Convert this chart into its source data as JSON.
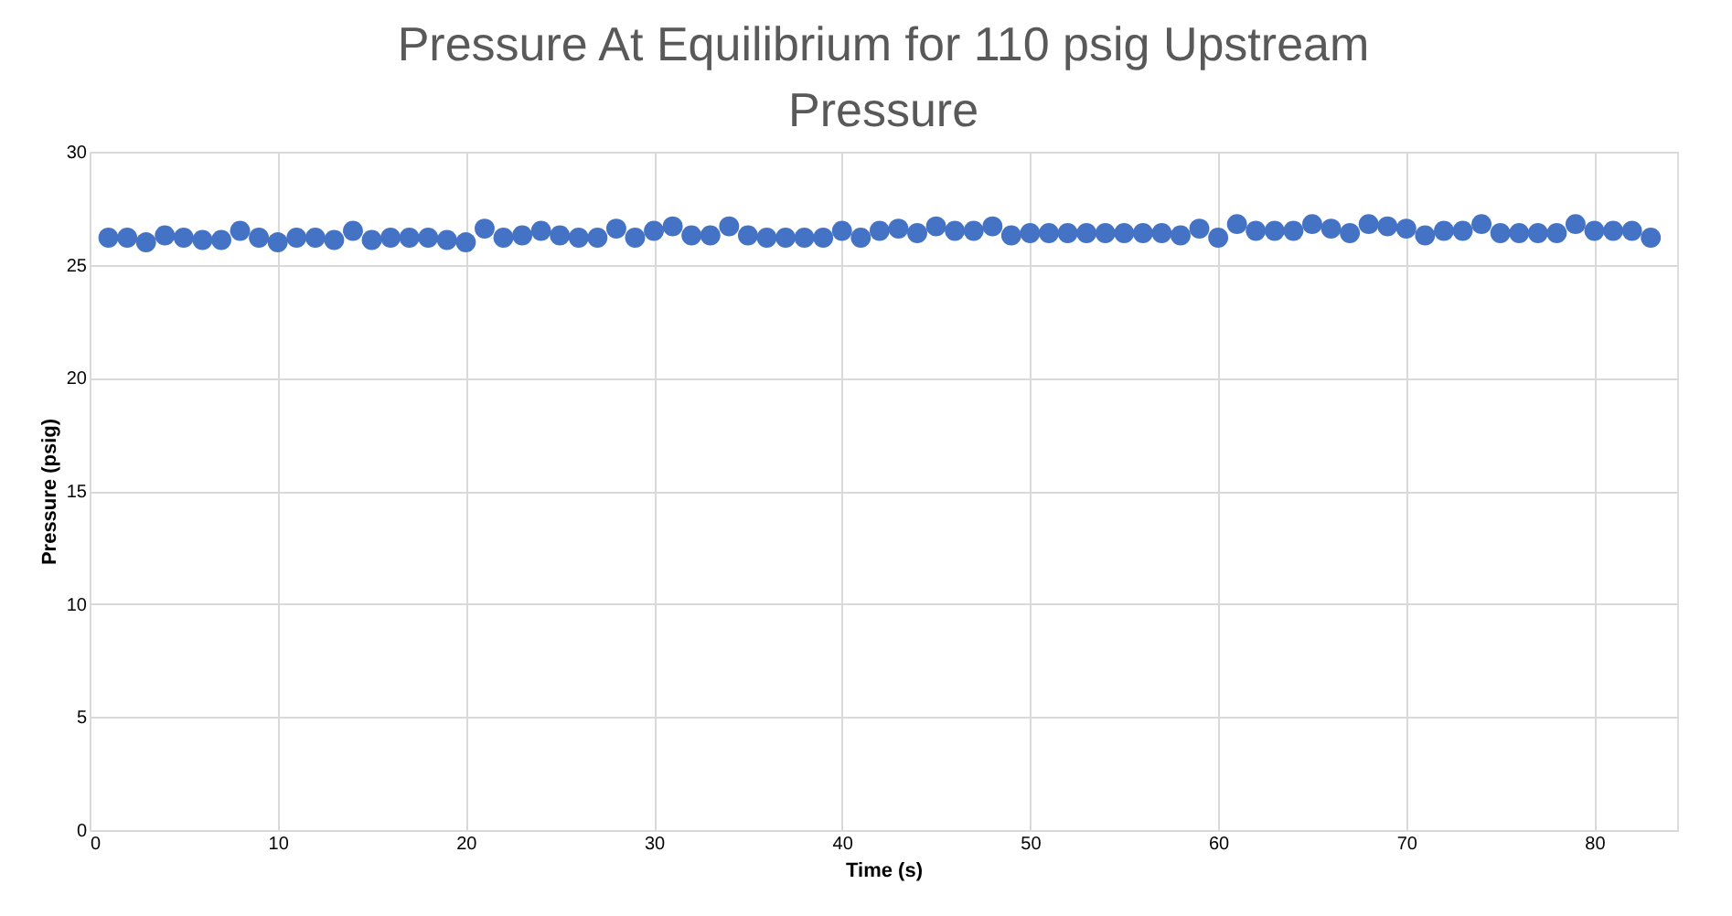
{
  "chart_data": {
    "type": "scatter",
    "title": "Pressure At Equilibrium for 110 psig Upstream Pressure",
    "xlabel": "Time (s)",
    "ylabel": "Pressure (psig)",
    "series": [
      {
        "color": "#4472c4",
        "x": [
          1,
          2,
          3,
          4,
          5,
          6,
          7,
          8,
          9,
          10,
          11,
          12,
          13,
          14,
          15,
          16,
          17,
          18,
          19,
          20,
          21,
          22,
          23,
          24,
          25,
          26,
          27,
          28,
          29,
          30,
          31,
          32,
          33,
          34,
          35,
          36,
          37,
          38,
          39,
          40,
          41,
          42,
          43,
          44,
          45,
          46,
          47,
          48,
          49,
          50,
          51,
          52,
          53,
          54,
          55,
          56,
          57,
          58,
          59,
          60,
          61,
          62,
          63,
          64,
          65,
          66,
          67,
          68,
          69,
          70,
          71,
          72,
          73,
          74,
          75,
          76,
          77,
          78,
          79,
          80,
          81,
          82,
          83
        ],
        "values": [
          26.2,
          26.2,
          26.0,
          26.3,
          26.2,
          26.1,
          26.1,
          26.5,
          26.2,
          26.0,
          26.2,
          26.2,
          26.1,
          26.5,
          26.1,
          26.2,
          26.2,
          26.2,
          26.1,
          26.0,
          26.6,
          26.2,
          26.3,
          26.5,
          26.3,
          26.2,
          26.2,
          26.6,
          26.2,
          26.5,
          26.7,
          26.3,
          26.3,
          26.7,
          26.3,
          26.2,
          26.2,
          26.2,
          26.2,
          26.5,
          26.2,
          26.5,
          26.6,
          26.4,
          26.7,
          26.5,
          26.5,
          26.7,
          26.3,
          26.4,
          26.4,
          26.4,
          26.4,
          26.4,
          26.4,
          26.4,
          26.4,
          26.3,
          26.6,
          26.2,
          26.8,
          26.5,
          26.5,
          26.5,
          26.8,
          26.6,
          26.4,
          26.8,
          26.7,
          26.6,
          26.3,
          26.5,
          26.5,
          26.8,
          26.4,
          26.4,
          26.4,
          26.4,
          26.8,
          26.5,
          26.5,
          26.5,
          26.2
        ]
      }
    ],
    "xlim": [
      0,
      84.4
    ],
    "xticks": [
      0,
      10,
      20,
      30,
      40,
      50,
      60,
      70,
      80
    ],
    "ylim": [
      0,
      30
    ],
    "yticks": [
      0,
      5,
      10,
      15,
      20,
      25,
      30
    ],
    "grid": true,
    "marker": "circle"
  }
}
